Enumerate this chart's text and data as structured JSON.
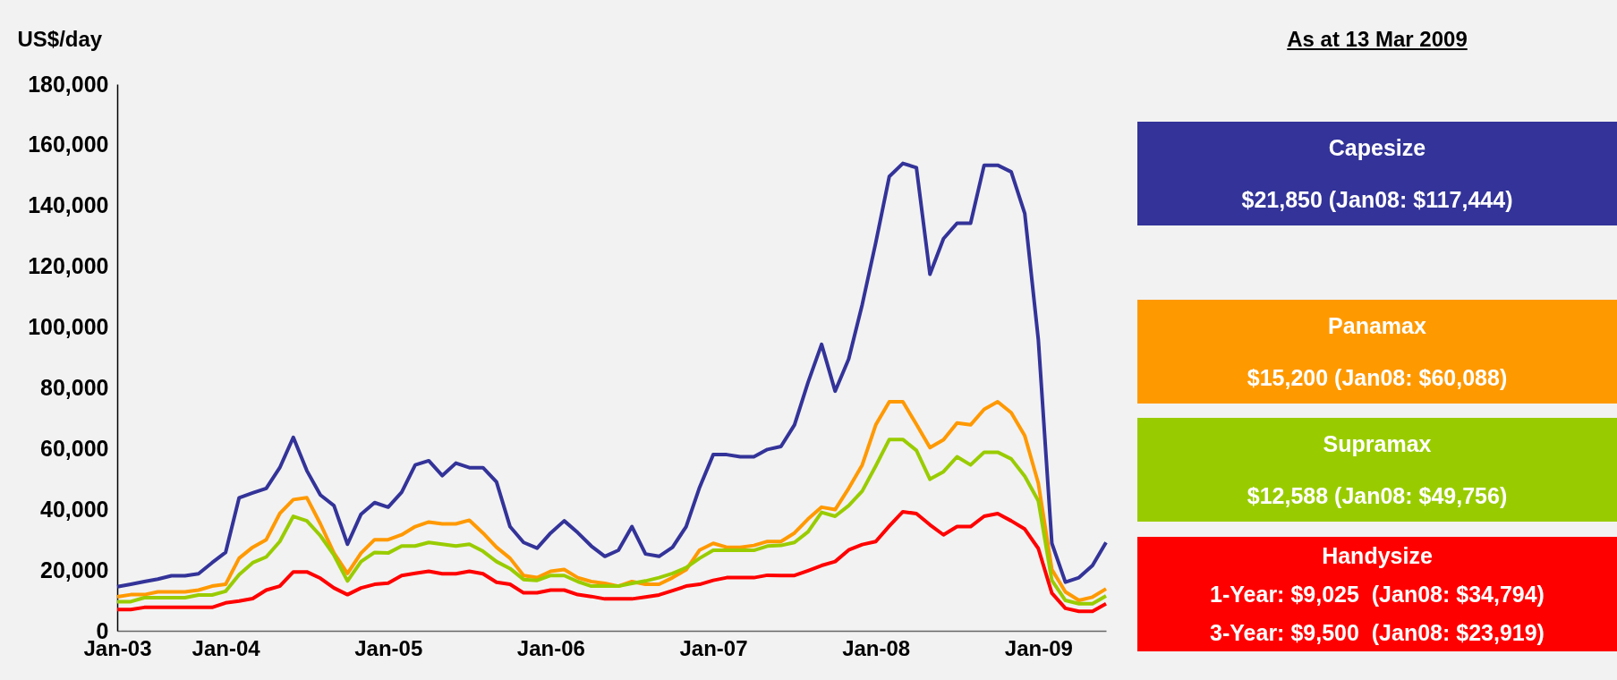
{
  "chart_data": {
    "type": "line",
    "ylabel": "US$/day",
    "categories": [
      "Jan-03",
      null,
      null,
      null,
      null,
      null,
      null,
      null,
      "Jan-04",
      null,
      null,
      null,
      null,
      null,
      null,
      null,
      null,
      null,
      null,
      null,
      "Jan-05",
      null,
      null,
      null,
      null,
      null,
      null,
      null,
      null,
      null,
      null,
      null,
      "Jan-06",
      null,
      null,
      null,
      null,
      null,
      null,
      null,
      null,
      null,
      null,
      null,
      "Jan-07",
      null,
      null,
      null,
      null,
      null,
      null,
      null,
      null,
      null,
      null,
      null,
      "Jan-08",
      null,
      null,
      null,
      null,
      null,
      null,
      null,
      null,
      null,
      null,
      null,
      "Jan-09",
      null,
      null,
      null,
      null,
      null
    ],
    "ylim": [
      0,
      180000
    ],
    "yticks": [
      0,
      {
        "value": 20000,
        "label": "20,000"
      },
      {
        "value": 40000,
        "label": "40,000"
      },
      {
        "value": 60000,
        "label": "60,000"
      },
      {
        "value": 80000,
        "label": "80,000"
      },
      {
        "value": 100000,
        "label": "100,000"
      },
      {
        "value": 120000,
        "label": "120,000"
      },
      {
        "value": 140000,
        "label": "140,000"
      },
      {
        "value": 160000,
        "label": "160,000"
      },
      {
        "value": 180000,
        "label": "180,000"
      }
    ],
    "grid": false,
    "legend": "right",
    "annotations": [
      "As at 13 Mar 2009",
      "$21,850 (Jan08: $117,444)",
      "$15,200 (Jan08: $60,088)",
      "$12,588 (Jan08: $49,756)",
      "1-Year: $9,025  (Jan08: $34,794)",
      "3-Year: $9,500  (Jan08: $23,919)"
    ],
    "series": [
      {
        "name": "Capesize",
        "color": "#333399",
        "values": [
          14500,
          15300,
          16200,
          17000,
          18100,
          18100,
          18800,
          22400,
          25800,
          43800,
          45400,
          46900,
          53700,
          63700,
          52700,
          44700,
          41200,
          28500,
          38400,
          42200,
          40700,
          45600,
          54600,
          56000,
          51100,
          55200,
          53700,
          53700,
          49000,
          34300,
          29100,
          27200,
          32200,
          36200,
          32300,
          27900,
          24500,
          26500,
          34300,
          25300,
          24500,
          27500,
          34300,
          47300,
          58000,
          58000,
          57300,
          57300,
          59700,
          60700,
          67800,
          81800,
          94300,
          78900,
          89500,
          107400,
          127800,
          149600,
          153900,
          152500,
          117400,
          129100,
          134200,
          134200,
          153300,
          153300,
          151100,
          137400,
          95900,
          28800,
          16000,
          17500,
          21500,
          29100
        ]
      },
      {
        "name": "Panamax",
        "color": "#ff9900",
        "values": [
          11200,
          11900,
          11900,
          12800,
          12800,
          12800,
          13400,
          14700,
          15300,
          23900,
          27500,
          30000,
          38600,
          43200,
          43800,
          35200,
          25600,
          18900,
          25600,
          30000,
          30000,
          31600,
          34300,
          35800,
          35200,
          35200,
          36400,
          32200,
          27500,
          23900,
          18200,
          17500,
          19600,
          20200,
          17500,
          16200,
          15600,
          14700,
          16200,
          15300,
          15300,
          17500,
          20100,
          26600,
          28800,
          27500,
          27500,
          28100,
          29400,
          29400,
          32200,
          36800,
          40700,
          39900,
          46900,
          54600,
          67800,
          75400,
          75400,
          68000,
          60300,
          62900,
          68400,
          67800,
          72900,
          75400,
          71800,
          64200,
          48600,
          20200,
          12800,
          10000,
          11100,
          13800
        ]
      },
      {
        "name": "Supramax",
        "color": "#99cc00",
        "values": [
          9600,
          9600,
          10900,
          10900,
          10900,
          10900,
          11800,
          11800,
          13000,
          18500,
          22400,
          24300,
          29400,
          37700,
          36200,
          31300,
          24900,
          16400,
          22800,
          25800,
          25600,
          27900,
          27900,
          29100,
          28500,
          27900,
          28500,
          26200,
          22800,
          20500,
          16900,
          16600,
          18200,
          18200,
          16200,
          14700,
          14700,
          14700,
          15600,
          16400,
          17500,
          18900,
          20800,
          23900,
          26500,
          26500,
          26500,
          26500,
          27900,
          28100,
          29100,
          32600,
          39000,
          37700,
          41200,
          46000,
          54300,
          63000,
          63000,
          59400,
          49900,
          52400,
          57300,
          54600,
          58800,
          58800,
          56600,
          50900,
          42800,
          16600,
          10000,
          8900,
          8900,
          11500
        ]
      },
      {
        "name": "Handysize",
        "color": "#ff0000",
        "values": [
          7000,
          7000,
          7700,
          7700,
          7700,
          7700,
          7700,
          7700,
          9200,
          9800,
          10600,
          13400,
          14700,
          19400,
          19400,
          17300,
          14100,
          11900,
          14100,
          15300,
          15700,
          18200,
          18900,
          19600,
          18800,
          18800,
          19600,
          18800,
          16000,
          15300,
          12500,
          12500,
          13400,
          13400,
          11900,
          11300,
          10500,
          10500,
          10500,
          11100,
          11800,
          13200,
          14700,
          15300,
          16600,
          17500,
          17500,
          17500,
          18300,
          18200,
          18200,
          19800,
          21500,
          22800,
          26600,
          28400,
          29400,
          34500,
          39200,
          38600,
          34900,
          31600,
          34300,
          34300,
          37700,
          38600,
          36200,
          33500,
          27100,
          12400,
          7400,
          6400,
          6400,
          8900
        ]
      }
    ]
  }
}
